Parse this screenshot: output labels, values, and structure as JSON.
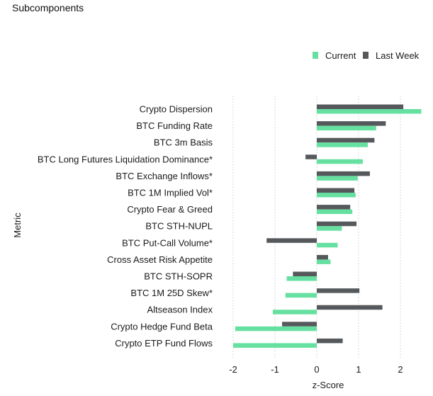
{
  "title": "Subcomponents",
  "chart_data": {
    "type": "bar",
    "orientation": "horizontal",
    "xlabel": "z-Score",
    "ylabel": "Metric",
    "xlim": [
      -2.2,
      2.5
    ],
    "xticks": [
      -2,
      -1,
      0,
      1,
      2
    ],
    "xtick_labels": [
      "-2",
      "-1",
      "0",
      "1",
      "2"
    ],
    "grid": "vertical",
    "legend_position": "top-right",
    "categories": [
      "Crypto Dispersion",
      "BTC Funding Rate",
      "BTC 3m Basis",
      "BTC Long Futures Liquidation Dominance*",
      "BTC Exchange Inflows*",
      "BTC 1M Implied Vol*",
      "Crypto Fear & Greed",
      "BTC STH-NUPL",
      "BTC Put-Call Volume*",
      "Cross Asset Risk Appetite",
      "BTC STH-SOPR",
      "BTC 1M 25D Skew*",
      "Altseason Index",
      "Crypto Hedge Fund Beta",
      "Crypto ETP Fund Flows"
    ],
    "series": [
      {
        "name": "Current",
        "color": "#66e0a0",
        "values": [
          2.5,
          1.42,
          1.22,
          1.1,
          0.98,
          0.93,
          0.85,
          0.6,
          0.5,
          0.33,
          -0.72,
          -0.75,
          -1.05,
          -1.95,
          -2.0
        ]
      },
      {
        "name": "Last Week",
        "color": "#55595c",
        "values": [
          2.07,
          1.65,
          1.38,
          -0.27,
          1.27,
          0.9,
          0.8,
          0.95,
          -1.2,
          0.27,
          -0.57,
          1.02,
          1.57,
          -0.83,
          0.62
        ]
      }
    ]
  }
}
